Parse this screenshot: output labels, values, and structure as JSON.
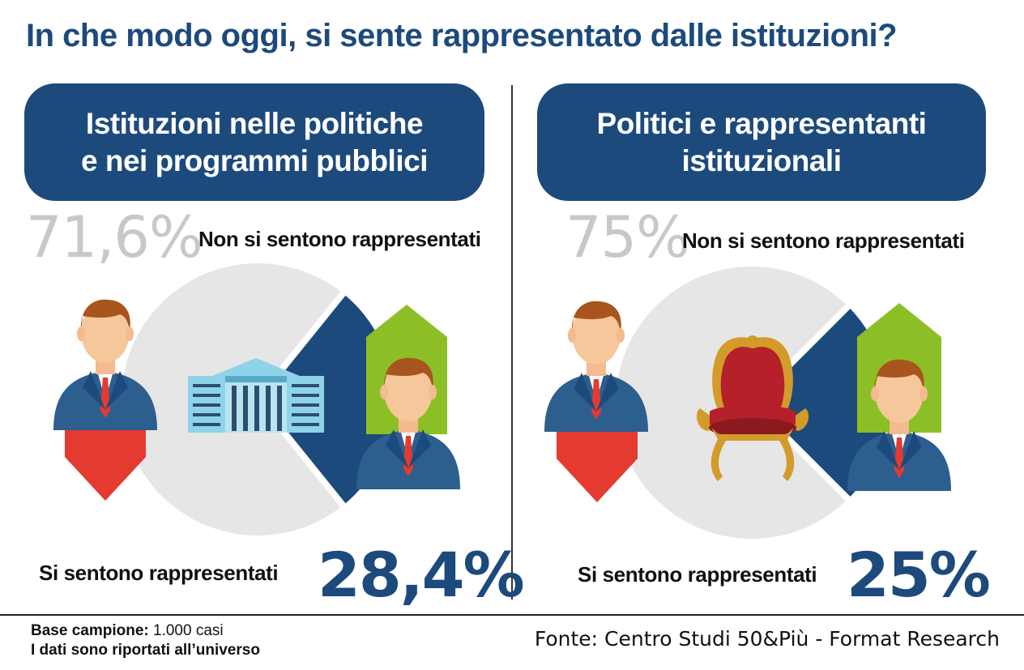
{
  "title": "In che modo oggi, si sente rappresentato dalle istituzioni?",
  "chart_data": [
    {
      "type": "pie",
      "title": "Istituzioni nelle politiche e nei programmi pubblici",
      "title_lines": [
        "Istituzioni nelle politiche",
        "e nei programmi pubblici"
      ],
      "slices": [
        {
          "label": "Non si sentono rappresentati",
          "value": 71.6,
          "value_label": "71,6%",
          "color": "#e6e6e6"
        },
        {
          "label": "Si sentono rappresentati",
          "value": 28.4,
          "value_label": "28,4%",
          "color": "#1d4a7c"
        }
      ],
      "center_icon": "government-building-icon"
    },
    {
      "type": "pie",
      "title": "Politici e rappresentanti istituzionali",
      "title_lines": [
        "Politici e rappresentanti",
        "istituzionali"
      ],
      "slices": [
        {
          "label": "Non si sentono rappresentati",
          "value": 75,
          "value_label": "75%",
          "color": "#e6e6e6"
        },
        {
          "label": "Si sentono rappresentati",
          "value": 25,
          "value_label": "25%",
          "color": "#1d4a7c"
        }
      ],
      "center_icon": "throne-chair-icon"
    }
  ],
  "footer": {
    "base_label": "Base campione:",
    "base_value": "1.000 casi",
    "note": "I dati sono riportati all’universo",
    "source": "Fonte: Centro Studi 50&Più - Format Research"
  },
  "colors": {
    "accent_blue": "#1d4a7c",
    "not_represented_grey": "#e6e6e6",
    "red_arrow": "#e53a2f",
    "green_arrow": "#8cbf26"
  }
}
